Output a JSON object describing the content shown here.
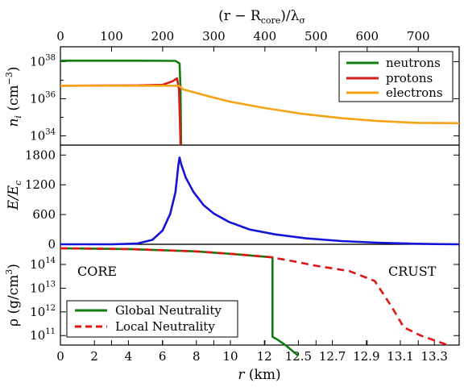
{
  "chart_data": [
    {
      "type": "line",
      "panel": "number-density",
      "ylabel": "n_i (cm^-3)",
      "xlabel_top": "(r − R_core)/λ_σ",
      "top_ticks": [
        "0",
        "100",
        "200",
        "300",
        "400",
        "500",
        "600",
        "700"
      ],
      "top_tick_values": [
        0,
        100,
        200,
        300,
        400,
        500,
        600,
        700
      ],
      "top_range": [
        0,
        780
      ],
      "y_scale": "log",
      "ylim_log10": [
        33.5,
        38.8
      ],
      "y_ticks_log10": [
        34,
        36,
        38
      ],
      "legend": "top-right",
      "series": [
        {
          "name": "neutrons",
          "color": "#0f7d0f",
          "points": [
            [
              0,
              38.05
            ],
            [
              150,
              38.05
            ],
            [
              225,
              38.04
            ],
            [
              233,
              37.9
            ],
            [
              235,
              36.5
            ],
            [
              236,
              33.5
            ]
          ]
        },
        {
          "name": "protons",
          "color": "#d91a1a",
          "points": [
            [
              0,
              36.7
            ],
            [
              150,
              36.72
            ],
            [
              200,
              36.75
            ],
            [
              220,
              36.95
            ],
            [
              228,
              37.1
            ],
            [
              232,
              36.5
            ],
            [
              234,
              34.5
            ],
            [
              235,
              33.5
            ]
          ]
        },
        {
          "name": "electrons",
          "color": "#f5a316",
          "points": [
            [
              0,
              36.7
            ],
            [
              200,
              36.7
            ],
            [
              230,
              36.7
            ],
            [
              232,
              36.7
            ],
            [
              240,
              36.5
            ],
            [
              280,
              36.2
            ],
            [
              330,
              35.85
            ],
            [
              400,
              35.5
            ],
            [
              470,
              35.2
            ],
            [
              550,
              34.95
            ],
            [
              620,
              34.8
            ],
            [
              700,
              34.7
            ],
            [
              780,
              34.68
            ]
          ]
        }
      ]
    },
    {
      "type": "line",
      "panel": "electric-field",
      "ylabel": "E/E_c",
      "y_ticks": [
        "0",
        "600",
        "1200",
        "1800"
      ],
      "y_tick_values": [
        0,
        600,
        1200,
        1800
      ],
      "ylim": [
        0,
        2000
      ],
      "series": [
        {
          "name": "",
          "color": "#1414d9",
          "points": [
            [
              0,
              0
            ],
            [
              100,
              0
            ],
            [
              150,
              15
            ],
            [
              180,
              90
            ],
            [
              200,
              280
            ],
            [
              215,
              620
            ],
            [
              225,
              1050
            ],
            [
              231,
              1620
            ],
            [
              233,
              1750
            ],
            [
              236,
              1620
            ],
            [
              245,
              1350
            ],
            [
              260,
              1060
            ],
            [
              280,
              790
            ],
            [
              300,
              620
            ],
            [
              330,
              450
            ],
            [
              370,
              300
            ],
            [
              420,
              200
            ],
            [
              480,
              120
            ],
            [
              550,
              65
            ],
            [
              620,
              32
            ],
            [
              680,
              15
            ],
            [
              730,
              5
            ],
            [
              780,
              0
            ]
          ]
        }
      ]
    },
    {
      "type": "line",
      "panel": "mass-density",
      "ylabel": "ρ (g/cm^3)",
      "xlabel": "r (km)",
      "x_ticks": [
        "0",
        "2",
        "4",
        "6",
        "8",
        "10",
        "12",
        "12.5",
        "12.7",
        "12.9",
        "13.1",
        "13.3"
      ],
      "x_tick_values": [
        0,
        2,
        4,
        6,
        8,
        10,
        12,
        12.5,
        12.7,
        12.9,
        13.1,
        13.3
      ],
      "y_scale": "log",
      "ylim_log10": [
        10.6,
        14.85
      ],
      "y_ticks_log10": [
        11,
        12,
        13,
        14
      ],
      "annotations": [
        "CORE",
        "CRUST"
      ],
      "legend": "bottom-left",
      "series": [
        {
          "name": "Global Neutrality",
          "color": "#0f7d0f",
          "style": "solid",
          "points": [
            [
              0,
              14.68
            ],
            [
              4,
              14.65
            ],
            [
              8,
              14.55
            ],
            [
              10,
              14.45
            ],
            [
              12.12,
              14.3
            ],
            [
              12.12,
              10.95
            ],
            [
              12.18,
              10.85
            ],
            [
              12.3,
              10.62
            ],
            [
              12.5,
              10.15
            ]
          ]
        },
        {
          "name": "Local Neutrality",
          "color": "#e01515",
          "style": "dashed",
          "points": [
            [
              0,
              14.68
            ],
            [
              4,
              14.65
            ],
            [
              8,
              14.55
            ],
            [
              10,
              14.45
            ],
            [
              12.12,
              14.3
            ],
            [
              12.2,
              14.25
            ],
            [
              12.4,
              14.15
            ],
            [
              12.6,
              13.95
            ],
            [
              12.8,
              13.72
            ],
            [
              12.95,
              13.3
            ],
            [
              13.05,
              12.2
            ],
            [
              13.12,
              11.35
            ],
            [
              13.22,
              11.0
            ],
            [
              13.38,
              10.6
            ]
          ]
        }
      ]
    }
  ],
  "labels": {
    "top_axis": "(r − R",
    "top_axis_sub": "core",
    "top_axis_end": ")/λ",
    "top_axis_end_sub": "σ",
    "y1_main": "n",
    "y1_sub": "i",
    "y1_unit": " (cm",
    "y1_exp": "−3",
    "y1_close": ")",
    "y2": "E/E",
    "y2_sub": "c",
    "y3_main": "ρ (g/cm",
    "y3_exp": "3",
    "y3_close": ")",
    "x3": "r (km)",
    "core": "CORE",
    "crust": "CRUST",
    "leg1": [
      "neutrons",
      "protons",
      "electrons"
    ],
    "leg3": [
      "Global Neutrality",
      "Local Neutrality"
    ]
  }
}
